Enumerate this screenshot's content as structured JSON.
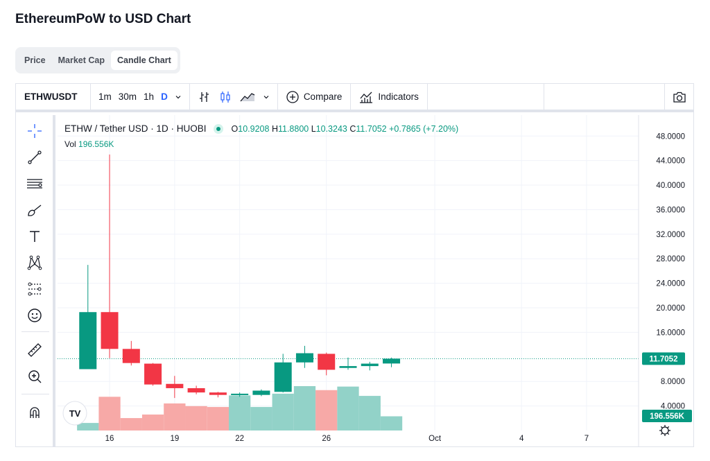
{
  "page": {
    "title": "EthereumPoW to USD Chart"
  },
  "tabs": [
    {
      "label": "Price",
      "active": false
    },
    {
      "label": "Market Cap",
      "active": false
    },
    {
      "label": "Candle Chart",
      "active": true
    }
  ],
  "toolbar": {
    "symbol": "ETHWUSDT",
    "intervals": [
      "1m",
      "30m",
      "1h",
      "D"
    ],
    "selected_interval": "D",
    "compare_label": "Compare",
    "indicators_label": "Indicators",
    "icons": [
      "chevron-down-icon",
      "bar-style-icon",
      "candle-style-icon",
      "area-style-icon",
      "chevron-down-icon",
      "plus-circle-icon",
      "indicators-icon",
      "camera-icon"
    ]
  },
  "left_tools": [
    "crosshair-icon",
    "trendline-icon",
    "fib-icon",
    "brush-icon",
    "text-icon",
    "pattern-icon",
    "prediction-icon",
    "emoji-icon",
    "ruler-icon",
    "zoom-in-icon",
    "magnet-icon"
  ],
  "legend": {
    "symbol_name": "ETHW / Tether USD · 1D · HUOBI",
    "o_label": "O",
    "o_value": "10.9208",
    "h_label": "H",
    "h_value": "11.8800",
    "l_label": "L",
    "l_value": "10.3243",
    "c_label": "C",
    "c_value": "11.7052",
    "change": "+0.7865 (+7.20%)",
    "vol_label": "Vol",
    "vol_value": "196.556K"
  },
  "chart_data": {
    "type": "candlestick",
    "title": "ETHW / Tether USD · 1D · HUOBI",
    "y_ticks": [
      "48.0000",
      "44.0000",
      "40.0000",
      "36.0000",
      "32.0000",
      "28.0000",
      "24.0000",
      "20.0000",
      "16.0000",
      "8.0000",
      "4.0000"
    ],
    "y_tick_values": [
      48,
      44,
      40,
      36,
      32,
      28,
      24,
      20,
      16,
      8,
      4
    ],
    "ylim": [
      0,
      49.5
    ],
    "x_ticks": [
      "16",
      "19",
      "22",
      "26",
      "Oct",
      "4",
      "7"
    ],
    "x_tick_days": [
      16,
      19,
      22,
      26,
      31,
      35,
      38
    ],
    "x_domain": [
      13.6,
      40.4
    ],
    "last_price": "11.7052",
    "last_price_value": 11.7052,
    "volume_badge": "196.556K",
    "colors": {
      "up": "#089981",
      "down": "#f23645",
      "vol_up": "#92d2c8",
      "vol_down": "#f7a9a7",
      "grid": "#f0f3fa"
    },
    "candles": [
      {
        "day": 15,
        "open": 10.0,
        "high": 27.0,
        "low": 10.0,
        "close": 19.3
      },
      {
        "day": 16,
        "open": 19.3,
        "high": 45.0,
        "low": 11.8,
        "close": 13.3
      },
      {
        "day": 17,
        "open": 13.3,
        "high": 14.6,
        "low": 10.6,
        "close": 11.0
      },
      {
        "day": 18,
        "open": 10.9,
        "high": 11.0,
        "low": 7.3,
        "close": 7.5
      },
      {
        "day": 19,
        "open": 7.6,
        "high": 8.9,
        "low": 5.3,
        "close": 6.9
      },
      {
        "day": 20,
        "open": 6.9,
        "high": 7.3,
        "low": 5.9,
        "close": 6.2
      },
      {
        "day": 21,
        "open": 6.2,
        "high": 6.3,
        "low": 5.4,
        "close": 5.8
      },
      {
        "day": 22,
        "open": 5.8,
        "high": 6.2,
        "low": 5.5,
        "close": 6.0
      },
      {
        "day": 23,
        "open": 5.8,
        "high": 6.7,
        "low": 5.6,
        "close": 6.5
      },
      {
        "day": 24,
        "open": 6.3,
        "high": 12.5,
        "low": 6.2,
        "close": 11.1
      },
      {
        "day": 25,
        "open": 11.1,
        "high": 13.8,
        "low": 10.2,
        "close": 12.6
      },
      {
        "day": 26,
        "open": 12.5,
        "high": 12.7,
        "low": 9.0,
        "close": 9.9
      },
      {
        "day": 27,
        "open": 10.2,
        "high": 11.9,
        "low": 9.9,
        "close": 10.5
      },
      {
        "day": 28,
        "open": 10.5,
        "high": 11.2,
        "low": 9.8,
        "close": 10.9
      },
      {
        "day": 29,
        "open": 10.92,
        "high": 11.88,
        "low": 10.32,
        "close": 11.71
      }
    ],
    "volume_relative": [
      0.17,
      0.76,
      0.28,
      0.36,
      0.61,
      0.55,
      0.53,
      0.79,
      0.53,
      0.83,
      1.0,
      0.91,
      0.99,
      0.78,
      0.32
    ]
  }
}
